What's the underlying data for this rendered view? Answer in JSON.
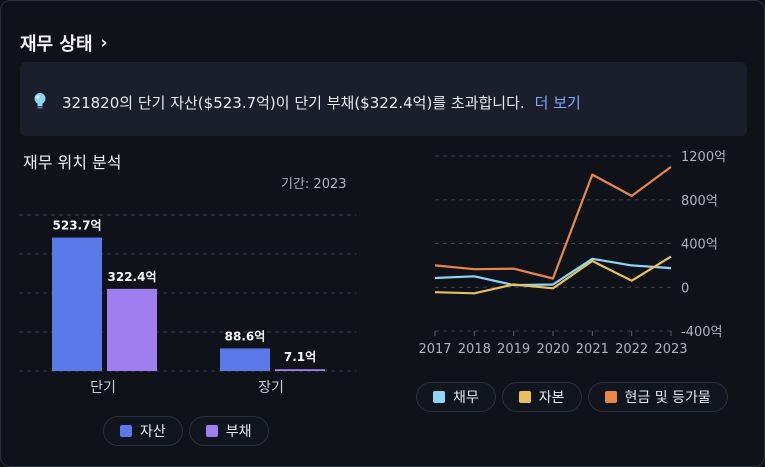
{
  "header": {
    "title": "재무 상태",
    "chevron": "›"
  },
  "info": {
    "icon": "lightbulb-icon",
    "message": "321820의 단기 자산($523.7억)이 단기 부채($322.4억)를 초과합니다.",
    "link": "더 보기"
  },
  "position": {
    "title": "재무 위치 분석",
    "period": "기간: 2023",
    "legend": [
      {
        "label": "자산",
        "color": "#5b78e8"
      },
      {
        "label": "부채",
        "color": "#a07ef0"
      }
    ]
  },
  "trend": {
    "legend": [
      {
        "label": "채무",
        "color": "#8fd5f5"
      },
      {
        "label": "자본",
        "color": "#e8c060"
      },
      {
        "label": "현금 및 등가물",
        "color": "#e8874a"
      }
    ]
  },
  "chart_data": [
    {
      "type": "bar",
      "categories": [
        "단기",
        "장기"
      ],
      "series": [
        {
          "name": "자산",
          "values": [
            523.7,
            88.6
          ],
          "labels": [
            "523.7억",
            "88.6억"
          ],
          "color": "#5b78e8"
        },
        {
          "name": "부채",
          "values": [
            322.4,
            7.1
          ],
          "labels": [
            "322.4억",
            "7.1억"
          ],
          "color": "#a07ef0"
        }
      ],
      "ylim": [
        0,
        620
      ],
      "grid": true,
      "legend": "bottom"
    },
    {
      "type": "line",
      "x": [
        "2017",
        "2018",
        "2019",
        "2020",
        "2021",
        "2022",
        "2023"
      ],
      "yticks": [
        "1200억",
        "800억",
        "400억",
        "0",
        "-400억"
      ],
      "ytick_values": [
        1200,
        800,
        400,
        0,
        -400
      ],
      "ylim": [
        -400,
        1200
      ],
      "series": [
        {
          "name": "채무",
          "values": [
            85,
            100,
            20,
            25,
            260,
            200,
            175
          ],
          "color": "#8fd5f5"
        },
        {
          "name": "자본",
          "values": [
            -45,
            -55,
            25,
            -10,
            240,
            60,
            280
          ],
          "color": "#e8c060"
        },
        {
          "name": "현금 및 등가물",
          "values": [
            200,
            165,
            170,
            80,
            1030,
            835,
            1100
          ],
          "color": "#e8874a"
        }
      ],
      "grid": true,
      "legend": "bottom"
    }
  ]
}
